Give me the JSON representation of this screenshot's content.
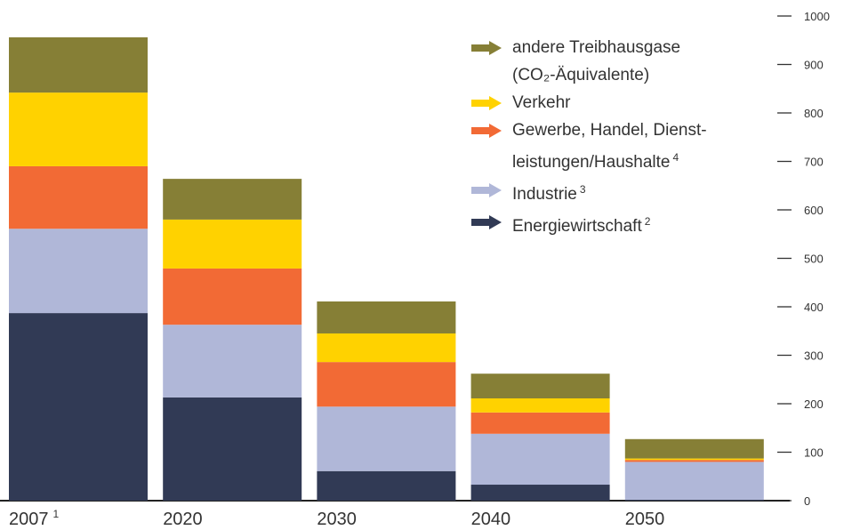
{
  "chart_data": {
    "type": "stacked-bar",
    "categories": [
      "2007",
      "2020",
      "2030",
      "2040",
      "2050"
    ],
    "category_notes": [
      "1",
      null,
      null,
      null,
      null
    ],
    "series": [
      {
        "name": "Energiewirtschaft",
        "note": "2",
        "color": "#313a55",
        "values": [
          387,
          213,
          61,
          33,
          2
        ]
      },
      {
        "name": "Industrie",
        "note": "3",
        "color": "#b0b7d8",
        "values": [
          174,
          150,
          133,
          105,
          78
        ]
      },
      {
        "name": "Gewerbe, Handel, Dienst­leistungen/Haushalte",
        "note": "4",
        "color": "#f26a35",
        "values": [
          129,
          116,
          92,
          44,
          4
        ]
      },
      {
        "name": "Verkehr",
        "note": null,
        "color": "#ffd200",
        "values": [
          152,
          101,
          59,
          29,
          3
        ]
      },
      {
        "name": "andere Treibhausgase (CO₂-Äquivalente)",
        "note": null,
        "color": "#867f36",
        "values": [
          114,
          84,
          66,
          51,
          40
        ]
      }
    ],
    "ylim": [
      0,
      1000
    ],
    "yticks": [
      0,
      100,
      200,
      300,
      400,
      500,
      600,
      700,
      800,
      900,
      1000
    ]
  }
}
